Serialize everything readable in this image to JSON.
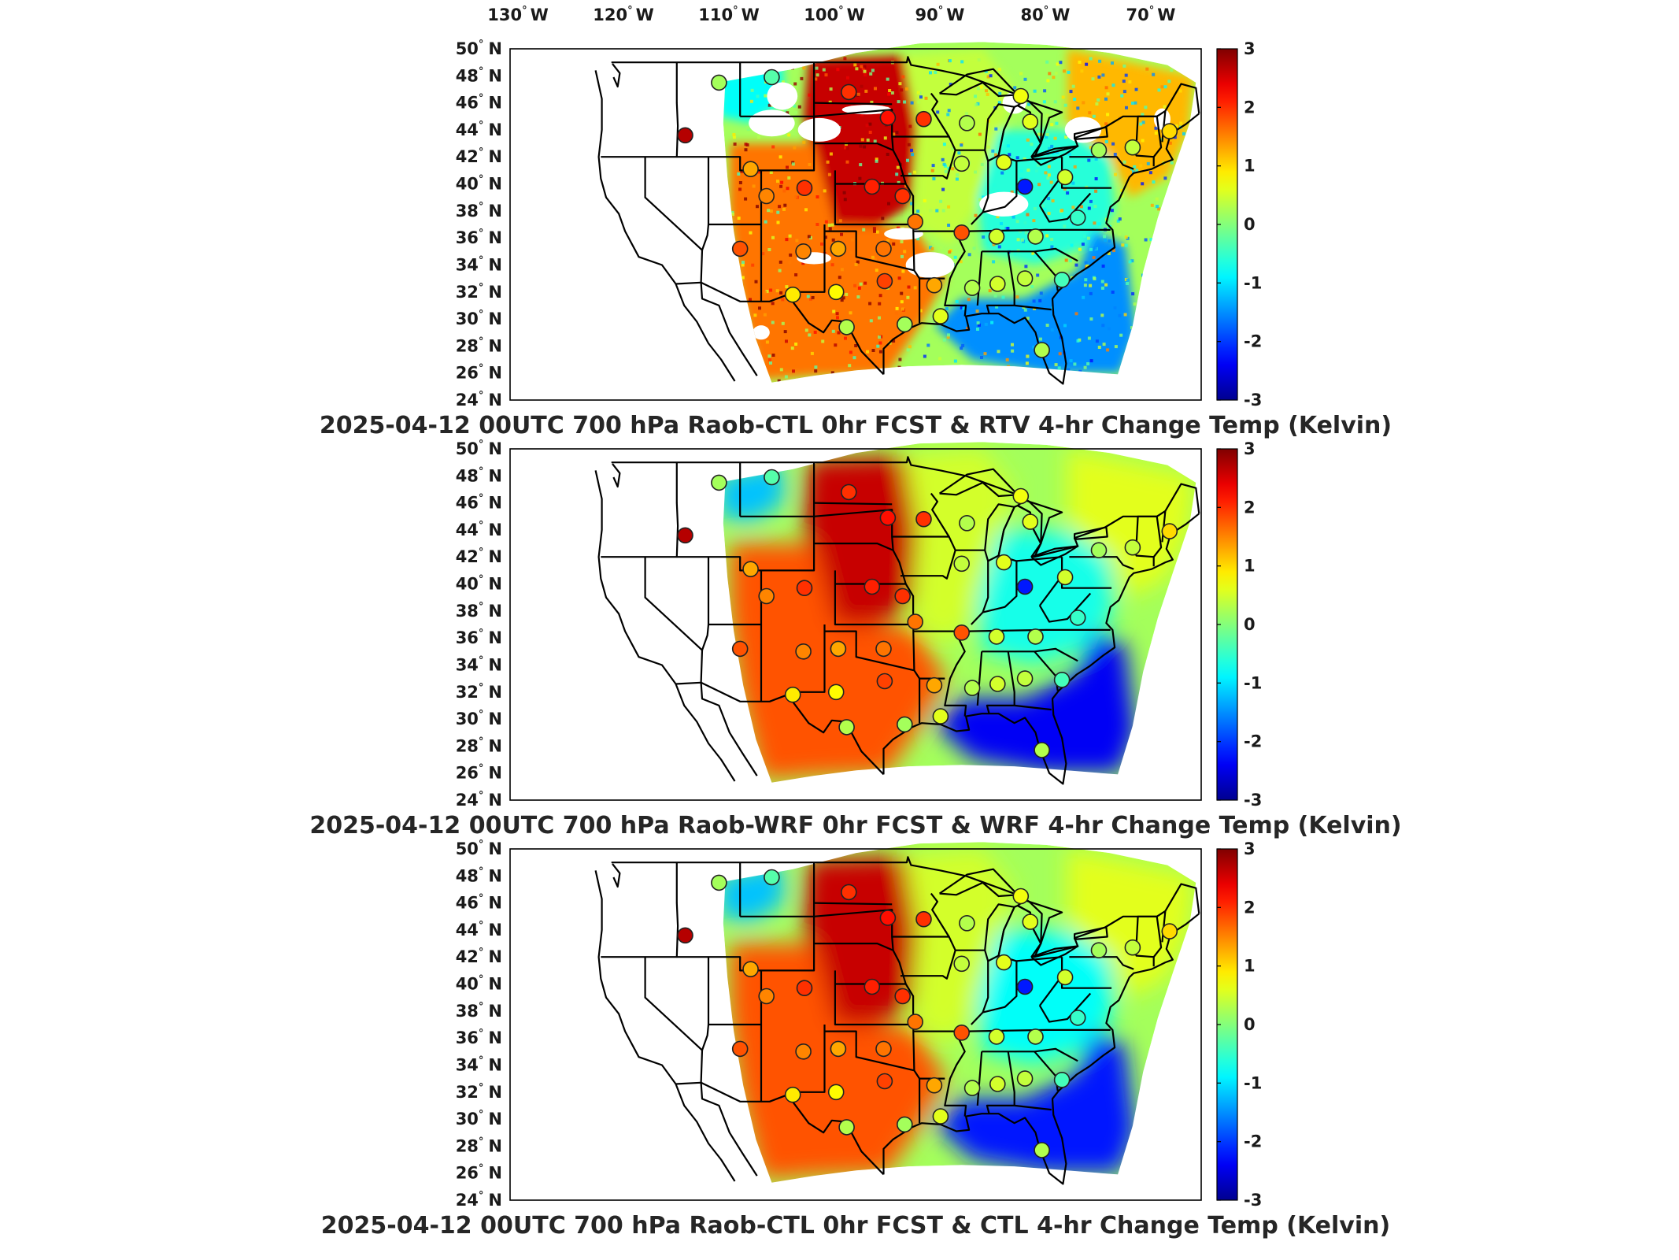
{
  "figure": {
    "lon_ticks": [
      "130",
      "120",
      "110",
      "100",
      "90",
      "80",
      "70"
    ],
    "lon_suffix": "W",
    "lat_ticks": [
      "50",
      "48",
      "46",
      "44",
      "42",
      "40",
      "38",
      "36",
      "34",
      "32",
      "30",
      "28",
      "26",
      "24"
    ],
    "lat_suffix": "N",
    "degree_symbol": "°",
    "colorbar_ticks": [
      "3",
      "2",
      "1",
      "0",
      "-1",
      "-2",
      "-3"
    ],
    "colorbar_range": [
      -3,
      3
    ],
    "colormap": "jet",
    "colormap_stops": [
      "#00008f",
      "#0000ff",
      "#00ffff",
      "#ffff00",
      "#ff0000",
      "#800000"
    ]
  },
  "panels": [
    {
      "title": "2025-04-12 00UTC 700 hPa Raob-CTL 0hr FCST & RTV 4-hr Change Temp (Kelvin)",
      "field_style": "speckled-with-gaps",
      "field_regions": [
        {
          "area": "northern plains (Dakotas, Nebraska, Kansas)",
          "value": 2.6
        },
        {
          "area": "southern plains and Texas",
          "value": 1.6
        },
        {
          "area": "upper midwest",
          "value": 0.4
        },
        {
          "area": "ohio valley and mid-atlantic",
          "value": -0.6
        },
        {
          "area": "southeast coast and gulf",
          "value": -1.5
        },
        {
          "area": "northeast and new england",
          "value": 1.2
        },
        {
          "area": "pacific northwest edge",
          "value": -0.8
        }
      ]
    },
    {
      "title": "2025-04-12 00UTC 700 hPa Raob-WRF 0hr FCST & WRF 4-hr Change Temp (Kelvin)",
      "field_style": "smooth",
      "field_regions": [
        {
          "area": "northern plains (Dakotas, Nebraska, Kansas)",
          "value": 2.6
        },
        {
          "area": "southern plains and Texas",
          "value": 1.8
        },
        {
          "area": "upper midwest",
          "value": 0.5
        },
        {
          "area": "ohio valley and mid-atlantic",
          "value": -0.7
        },
        {
          "area": "southeast coast and gulf",
          "value": -2.4
        },
        {
          "area": "northeast and new england",
          "value": 0.6
        },
        {
          "area": "pacific northwest edge",
          "value": -1.2
        }
      ]
    },
    {
      "title": "2025-04-12 00UTC 700 hPa Raob-CTL 0hr FCST & CTL 4-hr Change Temp (Kelvin)",
      "field_style": "smooth",
      "field_regions": [
        {
          "area": "northern plains (Dakotas, Nebraska, Kansas)",
          "value": 2.6
        },
        {
          "area": "southern plains and Texas",
          "value": 1.8
        },
        {
          "area": "upper midwest",
          "value": 0.5
        },
        {
          "area": "ohio valley and mid-atlantic",
          "value": -0.8
        },
        {
          "area": "southeast coast and gulf",
          "value": -2.2
        },
        {
          "area": "northeast and new england",
          "value": 0.6
        },
        {
          "area": "pacific northwest edge",
          "value": -1.2
        }
      ]
    }
  ],
  "stations": [
    {
      "lon": -113.0,
      "lat": 47.5,
      "value": 0.2
    },
    {
      "lon": -108.0,
      "lat": 47.9,
      "value": -0.3
    },
    {
      "lon": -100.7,
      "lat": 46.8,
      "value": 2.0
    },
    {
      "lon": -97.0,
      "lat": 44.9,
      "value": 2.2
    },
    {
      "lon": -93.6,
      "lat": 44.8,
      "value": 2.0
    },
    {
      "lon": -89.5,
      "lat": 44.5,
      "value": 0.3
    },
    {
      "lon": -84.4,
      "lat": 46.5,
      "value": 0.7
    },
    {
      "lon": -83.5,
      "lat": 44.6,
      "value": 0.6
    },
    {
      "lon": -116.2,
      "lat": 43.6,
      "value": 2.7
    },
    {
      "lon": -110.0,
      "lat": 41.1,
      "value": 1.3
    },
    {
      "lon": -108.5,
      "lat": 39.1,
      "value": 1.5
    },
    {
      "lon": -104.9,
      "lat": 39.7,
      "value": 2.0
    },
    {
      "lon": -98.5,
      "lat": 39.8,
      "value": 2.1
    },
    {
      "lon": -95.6,
      "lat": 39.1,
      "value": 2.0
    },
    {
      "lon": -90.0,
      "lat": 41.5,
      "value": 0.4
    },
    {
      "lon": -86.0,
      "lat": 41.6,
      "value": 0.6
    },
    {
      "lon": -84.0,
      "lat": 39.8,
      "value": -2.2
    },
    {
      "lon": -80.2,
      "lat": 40.5,
      "value": 0.5
    },
    {
      "lon": -77.0,
      "lat": 42.5,
      "value": 0.2
    },
    {
      "lon": -73.8,
      "lat": 42.7,
      "value": 0.4
    },
    {
      "lon": -70.3,
      "lat": 43.9,
      "value": 1.0
    },
    {
      "lon": -111.0,
      "lat": 35.2,
      "value": 1.8
    },
    {
      "lon": -105.0,
      "lat": 35.0,
      "value": 1.5
    },
    {
      "lon": -101.7,
      "lat": 35.2,
      "value": 1.3
    },
    {
      "lon": -97.4,
      "lat": 35.2,
      "value": 1.6
    },
    {
      "lon": -94.4,
      "lat": 37.2,
      "value": 1.6
    },
    {
      "lon": -90.0,
      "lat": 36.4,
      "value": 1.8
    },
    {
      "lon": -86.7,
      "lat": 36.1,
      "value": 0.5
    },
    {
      "lon": -83.0,
      "lat": 36.1,
      "value": 0.3
    },
    {
      "lon": -79.0,
      "lat": 37.5,
      "value": -0.5
    },
    {
      "lon": -106.0,
      "lat": 31.8,
      "value": 0.9
    },
    {
      "lon": -101.9,
      "lat": 32.0,
      "value": 0.8
    },
    {
      "lon": -97.3,
      "lat": 32.8,
      "value": 1.9
    },
    {
      "lon": -92.6,
      "lat": 32.5,
      "value": 1.3
    },
    {
      "lon": -89.0,
      "lat": 32.3,
      "value": 0.3
    },
    {
      "lon": -86.6,
      "lat": 32.6,
      "value": 0.5
    },
    {
      "lon": -84.0,
      "lat": 33.0,
      "value": 0.4
    },
    {
      "lon": -80.5,
      "lat": 32.9,
      "value": -0.4
    },
    {
      "lon": -100.9,
      "lat": 29.4,
      "value": 0.3
    },
    {
      "lon": -95.4,
      "lat": 29.6,
      "value": 0.2
    },
    {
      "lon": -92.0,
      "lat": 30.2,
      "value": 0.6
    },
    {
      "lon": -82.4,
      "lat": 27.7,
      "value": 0.3
    }
  ]
}
